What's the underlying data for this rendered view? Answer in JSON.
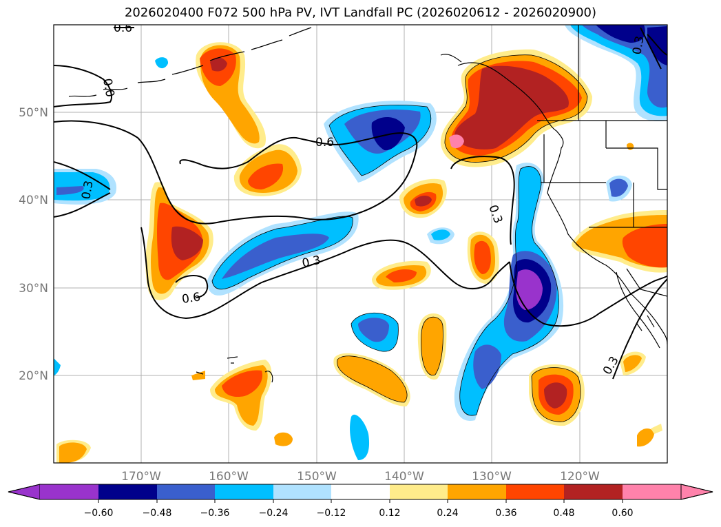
{
  "title": "2026020400 F072 500 hPa PV, IVT Landfall PC (2026020612 - 2026020900)",
  "colors": {
    "n060": "#9933cc",
    "n048": "#00008b",
    "n036": "#3a5fcd",
    "n024": "#00bfff",
    "n012": "#b0e2ff",
    "zero": "#ffffff",
    "p012": "#ffec8b",
    "p024": "#ffa500",
    "p036": "#ff4500",
    "p048": "#b22222",
    "p060": "#ff82ab",
    "coast": "#000000",
    "grid": "#b0b0b0",
    "contour": "#000000"
  },
  "axes": {
    "lon_ticks": [
      "170°W",
      "160°W",
      "150°W",
      "140°W",
      "130°W",
      "120°W"
    ],
    "lat_ticks": [
      "50°N",
      "40°N",
      "30°N",
      "20°N"
    ]
  },
  "colorbar": {
    "tick_labels": [
      "−0.60",
      "−0.48",
      "−0.36",
      "−0.24",
      "−0.12",
      "0.12",
      "0.24",
      "0.36",
      "0.48",
      "0.60"
    ]
  },
  "contour_labels": [
    "0.6",
    "0.3",
    "0.6",
    "0.3",
    "0.6",
    "0.3",
    "0.3",
    "0.0",
    "0.3"
  ]
}
